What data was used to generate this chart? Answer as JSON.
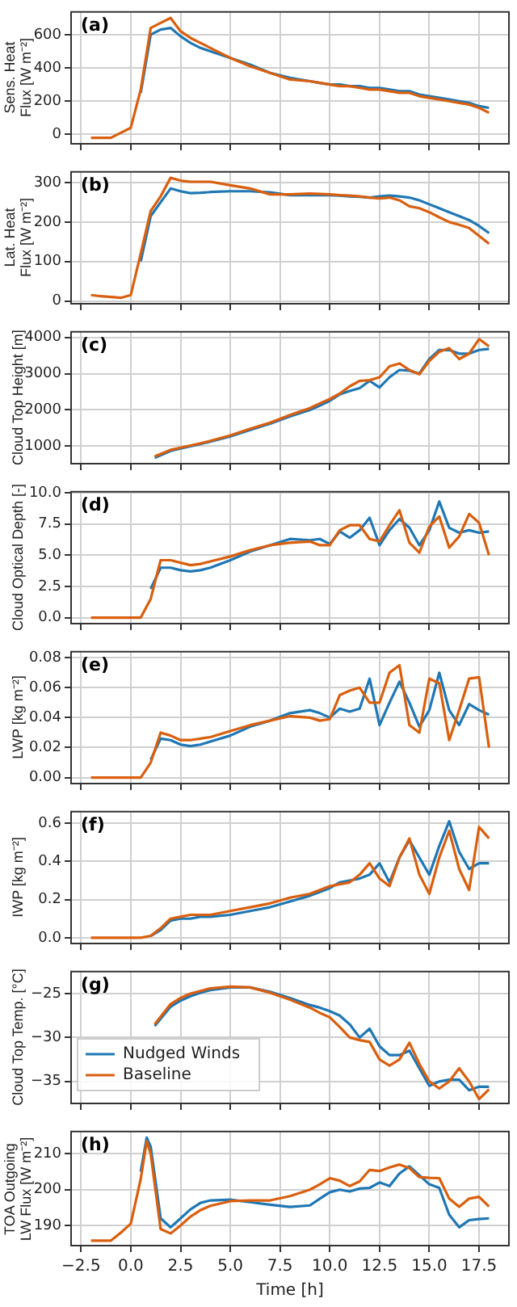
{
  "chart_data": [
    {
      "type": "line",
      "ylabel": "Sens. Heat\nFlux [W m⁻²]",
      "annotations": [
        "(a)"
      ],
      "grid": true,
      "tick_labels": "y",
      "x": [
        -2,
        -1.5,
        -1,
        -0.5,
        0,
        0.5,
        1,
        1.5,
        2,
        2.5,
        3,
        3.5,
        4,
        5,
        6,
        7,
        8,
        9,
        9.5,
        10,
        10.5,
        11,
        11.5,
        12,
        12.5,
        13,
        13.5,
        14,
        14.5,
        15,
        15.5,
        16,
        16.5,
        17,
        17.5,
        18
      ],
      "xlim": [
        -3,
        19
      ],
      "xticks": [
        -2.5,
        0,
        2.5,
        5,
        7.5,
        10,
        12.5,
        15,
        17.5
      ],
      "ylim": [
        -56,
        736
      ],
      "yticks": [
        0,
        200,
        400,
        600
      ],
      "series": [
        {
          "color": "#1f77b4",
          "values": [
            null,
            null,
            null,
            null,
            null,
            250,
            600,
            630,
            640,
            590,
            550,
            520,
            500,
            460,
            420,
            370,
            340,
            320,
            310,
            300,
            300,
            290,
            290,
            280,
            280,
            270,
            260,
            260,
            240,
            230,
            220,
            210,
            200,
            190,
            170,
            160
          ]
        },
        {
          "color": "#d95f0e",
          "values": [
            -20,
            -20,
            -20,
            10,
            40,
            270,
            640,
            670,
            700,
            620,
            580,
            550,
            520,
            460,
            410,
            370,
            330,
            320,
            310,
            300,
            290,
            290,
            280,
            270,
            270,
            260,
            250,
            250,
            230,
            220,
            210,
            200,
            190,
            180,
            160,
            130
          ]
        }
      ]
    },
    {
      "type": "line",
      "ylabel": "Lat. Heat\nFlux [W m⁻²]",
      "annotations": [
        "(b)"
      ],
      "grid": true,
      "tick_labels": "y",
      "x": [
        -2,
        -1.5,
        -1,
        -0.5,
        0,
        0.5,
        1,
        1.5,
        2,
        2.5,
        3,
        3.5,
        4,
        5,
        6,
        7,
        8,
        9,
        9.5,
        10,
        10.5,
        11,
        11.5,
        12,
        12.5,
        13,
        13.5,
        14,
        14.5,
        15,
        15.5,
        16,
        16.5,
        17,
        17.5,
        18
      ],
      "xlim": [
        -3,
        19
      ],
      "xticks": [
        -2.5,
        0,
        2.5,
        5,
        7.5,
        10,
        12.5,
        15,
        17.5
      ],
      "ylim": [
        -7,
        327
      ],
      "yticks": [
        0,
        100,
        200,
        300
      ],
      "series": [
        {
          "color": "#1f77b4",
          "values": [
            null,
            null,
            null,
            null,
            null,
            100,
            215,
            250,
            285,
            278,
            273,
            274,
            276,
            278,
            278,
            275,
            268,
            268,
            268,
            268,
            267,
            265,
            264,
            262,
            265,
            267,
            265,
            262,
            255,
            245,
            235,
            225,
            215,
            205,
            190,
            172
          ]
        },
        {
          "color": "#d95f0e",
          "values": [
            15,
            12,
            10,
            8,
            15,
            120,
            228,
            265,
            312,
            305,
            302,
            302,
            302,
            293,
            285,
            270,
            270,
            272,
            271,
            270,
            268,
            267,
            265,
            262,
            260,
            262,
            255,
            240,
            235,
            225,
            212,
            200,
            193,
            185,
            165,
            145
          ]
        }
      ]
    },
    {
      "type": "line",
      "ylabel": "Cloud Top Height [m]",
      "annotations": [
        "(c)"
      ],
      "grid": true,
      "tick_labels": "y",
      "x": [
        1.2,
        2,
        2.5,
        3,
        3.5,
        4,
        5,
        6,
        7,
        8,
        9,
        9.5,
        10,
        10.5,
        11,
        11.5,
        12,
        12.5,
        13,
        13.5,
        14,
        14.5,
        15,
        15.5,
        16,
        16.5,
        17,
        17.5,
        18
      ],
      "xlim": [
        -3,
        19
      ],
      "xticks": [
        -2.5,
        0,
        2.5,
        5,
        7.5,
        10,
        12.5,
        15,
        17.5
      ],
      "ylim": [
        520,
        4150
      ],
      "yticks": [
        1000,
        2000,
        3000,
        4000
      ],
      "series": [
        {
          "color": "#1f77b4",
          "values": [
            680,
            870,
            940,
            1000,
            1060,
            1130,
            1270,
            1450,
            1620,
            1820,
            2000,
            2120,
            2250,
            2430,
            2520,
            2600,
            2800,
            2620,
            2900,
            3100,
            3080,
            3000,
            3400,
            3650,
            3650,
            3550,
            3550,
            3650,
            3680
          ]
        },
        {
          "color": "#d95f0e",
          "values": [
            720,
            900,
            960,
            1020,
            1080,
            1150,
            1300,
            1480,
            1650,
            1860,
            2050,
            2180,
            2300,
            2450,
            2650,
            2800,
            2820,
            2900,
            3200,
            3280,
            3100,
            2980,
            3350,
            3600,
            3700,
            3400,
            3550,
            3950,
            3750
          ]
        }
      ]
    },
    {
      "type": "line",
      "ylabel": "Cloud Optical Depth [-]",
      "annotations": [
        "(d)"
      ],
      "grid": true,
      "tick_labels": "y",
      "x": [
        -2,
        -1.5,
        -1,
        -0.5,
        0,
        0.5,
        1,
        1.5,
        2,
        2.5,
        3,
        3.5,
        4,
        5,
        6,
        7,
        8,
        9,
        9.5,
        10,
        10.5,
        11,
        11.5,
        12,
        12.5,
        13,
        13.5,
        14,
        14.5,
        15,
        15.5,
        16,
        16.5,
        17,
        17.5,
        18
      ],
      "xlim": [
        -3,
        19
      ],
      "xticks": [
        -2.5,
        0,
        2.5,
        5,
        7.5,
        10,
        12.5,
        15,
        17.5
      ],
      "ylim": [
        -0.48,
        10.08
      ],
      "yticks": [
        {
          "value": 0,
          "label": "0.0"
        },
        {
          "value": 2.5,
          "label": "2.5"
        },
        {
          "value": 5,
          "label": "5.0"
        },
        {
          "value": 7.5,
          "label": "7.5"
        },
        {
          "value": 10,
          "label": "10.0"
        }
      ],
      "series": [
        {
          "color": "#1f77b4",
          "values": [
            null,
            null,
            null,
            null,
            null,
            null,
            2.3,
            4.0,
            4.0,
            3.8,
            3.7,
            3.8,
            4.0,
            4.6,
            5.3,
            5.8,
            6.3,
            6.2,
            6.3,
            5.9,
            6.9,
            6.4,
            7.0,
            8.0,
            5.8,
            7.0,
            7.9,
            7.2,
            5.8,
            7.0,
            9.3,
            7.2,
            6.8,
            7.0,
            6.8,
            6.9
          ]
        },
        {
          "color": "#d95f0e",
          "values": [
            0,
            0,
            0,
            0,
            0,
            0,
            1.5,
            4.6,
            4.6,
            4.4,
            4.2,
            4.3,
            4.5,
            4.9,
            5.4,
            5.8,
            6.0,
            6.1,
            5.8,
            5.8,
            7.0,
            7.4,
            7.4,
            6.3,
            6.1,
            7.4,
            8.6,
            6.0,
            5.2,
            7.3,
            8.1,
            5.6,
            6.5,
            8.3,
            7.6,
            5.0
          ]
        }
      ]
    },
    {
      "type": "line",
      "ylabel": "LWP [kg m⁻²]",
      "annotations": [
        "(e)"
      ],
      "grid": true,
      "tick_labels": "y",
      "x": [
        -2,
        -1.5,
        -1,
        -0.5,
        0,
        0.5,
        1,
        1.5,
        2,
        2.5,
        3,
        3.5,
        4,
        5,
        6,
        7,
        8,
        9,
        9.5,
        10,
        10.5,
        11,
        11.5,
        12,
        12.5,
        13,
        13.5,
        14,
        14.5,
        15,
        15.5,
        16,
        16.5,
        17,
        17.5,
        18
      ],
      "xlim": [
        -3,
        19
      ],
      "xticks": [
        -2.5,
        0,
        2.5,
        5,
        7.5,
        10,
        12.5,
        15,
        17.5
      ],
      "ylim": [
        -0.004,
        0.084
      ],
      "yticks": [
        {
          "value": 0,
          "label": "0.00"
        },
        {
          "value": 0.02,
          "label": "0.02"
        },
        {
          "value": 0.04,
          "label": "0.04"
        },
        {
          "value": 0.06,
          "label": "0.06"
        },
        {
          "value": 0.08,
          "label": "0.08"
        }
      ],
      "series": [
        {
          "color": "#1f77b4",
          "values": [
            null,
            null,
            null,
            null,
            null,
            null,
            0.012,
            0.026,
            0.025,
            0.022,
            0.021,
            0.022,
            0.024,
            0.028,
            0.034,
            0.038,
            0.043,
            0.045,
            0.043,
            0.04,
            0.046,
            0.044,
            0.046,
            0.066,
            0.035,
            0.05,
            0.064,
            0.05,
            0.034,
            0.045,
            0.07,
            0.045,
            0.035,
            0.049,
            0.045,
            0.042
          ]
        },
        {
          "color": "#d95f0e",
          "values": [
            0,
            0,
            0,
            0,
            0,
            0,
            0.01,
            0.03,
            0.028,
            0.025,
            0.025,
            0.026,
            0.027,
            0.031,
            0.035,
            0.038,
            0.041,
            0.04,
            0.038,
            0.039,
            0.055,
            0.058,
            0.06,
            0.05,
            0.05,
            0.07,
            0.075,
            0.035,
            0.03,
            0.066,
            0.063,
            0.025,
            0.045,
            0.066,
            0.067,
            0.02
          ]
        }
      ]
    },
    {
      "type": "line",
      "ylabel": "IWP [kg m⁻²]",
      "annotations": [
        "(f)"
      ],
      "grid": true,
      "tick_labels": "y",
      "x": [
        -2,
        -1.5,
        -1,
        -0.5,
        0,
        0.5,
        1,
        1.5,
        2,
        2.5,
        3,
        3.5,
        4,
        5,
        6,
        7,
        8,
        9,
        9.5,
        10,
        10.5,
        11,
        11.5,
        12,
        12.5,
        13,
        13.5,
        14,
        14.5,
        15,
        15.5,
        16,
        16.5,
        17,
        17.5,
        18
      ],
      "xlim": [
        -3,
        19
      ],
      "xticks": [
        -2.5,
        0,
        2.5,
        5,
        7.5,
        10,
        12.5,
        15,
        17.5
      ],
      "ylim": [
        -0.03,
        0.66
      ],
      "yticks": [
        {
          "value": 0,
          "label": "0.0"
        },
        {
          "value": 0.2,
          "label": "0.2"
        },
        {
          "value": 0.4,
          "label": "0.4"
        },
        {
          "value": 0.6,
          "label": "0.6"
        }
      ],
      "series": [
        {
          "color": "#1f77b4",
          "values": [
            null,
            null,
            null,
            null,
            null,
            null,
            0.01,
            0.04,
            0.09,
            0.1,
            0.1,
            0.11,
            0.11,
            0.12,
            0.14,
            0.16,
            0.19,
            0.22,
            0.24,
            0.26,
            0.29,
            0.3,
            0.31,
            0.33,
            0.39,
            0.29,
            0.42,
            0.51,
            0.42,
            0.33,
            0.48,
            0.61,
            0.45,
            0.36,
            0.39,
            0.39
          ]
        },
        {
          "color": "#d95f0e",
          "values": [
            0,
            0,
            0,
            0,
            0,
            0,
            0.01,
            0.05,
            0.1,
            0.11,
            0.12,
            0.12,
            0.12,
            0.14,
            0.16,
            0.18,
            0.21,
            0.23,
            0.25,
            0.27,
            0.28,
            0.29,
            0.33,
            0.39,
            0.31,
            0.27,
            0.42,
            0.52,
            0.33,
            0.23,
            0.42,
            0.56,
            0.36,
            0.25,
            0.58,
            0.52
          ]
        }
      ]
    },
    {
      "type": "line",
      "ylabel": "Cloud Top Temp. [°C]",
      "annotations": [
        "(g)"
      ],
      "grid": true,
      "tick_labels": "y",
      "legend": "lower left",
      "x": [
        1.2,
        2,
        2.5,
        3,
        3.5,
        4,
        5,
        6,
        7,
        8,
        9,
        9.5,
        10,
        10.5,
        11,
        11.5,
        12,
        12.5,
        13,
        13.5,
        14,
        14.5,
        15,
        15.5,
        16,
        16.5,
        17,
        17.5,
        18
      ],
      "xlim": [
        -3,
        19
      ],
      "xticks": [
        -2.5,
        0,
        2.5,
        5,
        7.5,
        10,
        12.5,
        15,
        17.5
      ],
      "ylim": [
        -37.5,
        -22.5
      ],
      "yticks": [
        {
          "value": -35,
          "label": "−35"
        },
        {
          "value": -30,
          "label": "−30"
        },
        {
          "value": -25,
          "label": "−25"
        }
      ],
      "series": [
        {
          "name": "Nudged Winds",
          "color": "#1f77b4",
          "values": [
            -28.7,
            -26.5,
            -25.8,
            -25.3,
            -24.9,
            -24.6,
            -24.3,
            -24.3,
            -24.8,
            -25.5,
            -26.3,
            -26.6,
            -27.0,
            -27.5,
            -28.5,
            -30.0,
            -29.0,
            -31.0,
            -32.0,
            -32.0,
            -31.5,
            -33.5,
            -35.5,
            -35.0,
            -34.8,
            -34.8,
            -36.0,
            -35.6,
            -35.6
          ]
        },
        {
          "name": "Baseline",
          "color": "#d95f0e",
          "values": [
            -28.5,
            -26.2,
            -25.5,
            -25.0,
            -24.7,
            -24.4,
            -24.2,
            -24.3,
            -24.9,
            -25.7,
            -26.6,
            -27.2,
            -27.7,
            -28.8,
            -30.0,
            -30.3,
            -30.5,
            -32.5,
            -33.2,
            -32.5,
            -30.6,
            -33.0,
            -35.0,
            -35.8,
            -35.0,
            -33.5,
            -35.0,
            -37.0,
            -35.9
          ]
        }
      ]
    },
    {
      "type": "line",
      "ylabel": "TOA Outgoing\nLW Flux [W m⁻²]",
      "xlabel": "Time [h]",
      "annotations": [
        "(h)"
      ],
      "grid": true,
      "x": [
        -2,
        -1.5,
        -1,
        -0.5,
        0,
        0.5,
        0.8,
        1,
        1.5,
        2,
        2.5,
        3,
        3.5,
        4,
        5,
        6,
        7,
        8,
        9,
        9.5,
        10,
        10.5,
        11,
        11.5,
        12,
        12.5,
        13,
        13.5,
        14,
        14.5,
        15,
        15.5,
        16,
        16.5,
        17,
        17.5,
        18
      ],
      "xlim": [
        -3,
        19
      ],
      "xticks": [
        {
          "value": -2.5,
          "label": "−2.5"
        },
        {
          "value": 0,
          "label": "0.0"
        },
        {
          "value": 2.5,
          "label": "2.5"
        },
        {
          "value": 5,
          "label": "5.0"
        },
        {
          "value": 7.5,
          "label": "7.5"
        },
        {
          "value": 10,
          "label": "10.0"
        },
        {
          "value": 12.5,
          "label": "12.5"
        },
        {
          "value": 15,
          "label": "15.0"
        },
        {
          "value": 17.5,
          "label": "17.5"
        }
      ],
      "ylim": [
        184.4,
        216.2
      ],
      "yticks": [
        190,
        200,
        210
      ],
      "series": [
        {
          "color": "#1f77b4",
          "values": [
            null,
            null,
            null,
            null,
            null,
            205,
            214.5,
            212,
            192,
            189.5,
            192,
            194.5,
            196.3,
            197,
            197.2,
            196.5,
            195.8,
            195.2,
            195.6,
            197.5,
            199.3,
            200,
            199.5,
            200.3,
            200.5,
            202,
            201,
            204.5,
            206.5,
            204,
            201.5,
            200.5,
            193,
            189.5,
            191.5,
            191.8,
            192
          ]
        },
        {
          "color": "#d95f0e",
          "values": [
            185.8,
            185.8,
            185.8,
            188,
            190.5,
            203,
            213.5,
            210,
            189,
            187.8,
            190,
            192.5,
            194.3,
            195.5,
            196.8,
            197,
            197,
            198.2,
            200,
            201.5,
            203.2,
            202.5,
            201,
            202.3,
            205.5,
            205.2,
            206.2,
            207,
            206,
            203.5,
            203.3,
            203.2,
            197.5,
            195.2,
            197.5,
            198,
            195.3
          ]
        }
      ]
    }
  ]
}
